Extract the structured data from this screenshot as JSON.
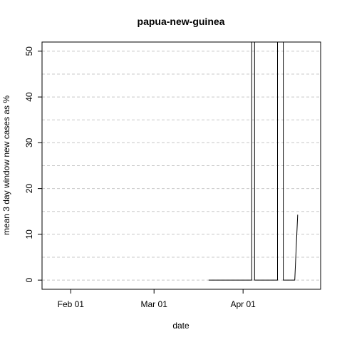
{
  "chart_data": {
    "type": "line",
    "title": "papua-new-guinea",
    "xlabel": "date",
    "ylabel": "mean  3  day window new cases as %",
    "x_axis": {
      "type": "date",
      "range": [
        "2020-01-22",
        "2020-04-28"
      ],
      "ticks": [
        {
          "value": "2020-02-01",
          "label": "Feb 01"
        },
        {
          "value": "2020-03-01",
          "label": "Mar 01"
        },
        {
          "value": "2020-04-01",
          "label": "Apr 01"
        }
      ]
    },
    "y_axis": {
      "range": [
        -2,
        52
      ],
      "ticks": [
        0,
        10,
        20,
        30,
        40,
        50
      ],
      "minor_grid": [
        5,
        15,
        25,
        35,
        45
      ]
    },
    "grid": true,
    "series": [
      {
        "x": [
          "2020-03-20",
          "2020-03-25",
          "2020-03-30",
          "2020-04-04",
          "2020-04-04",
          "2020-04-05",
          "2020-04-05",
          "2020-04-13",
          "2020-04-13",
          "2020-04-15",
          "2020-04-15",
          "2020-04-19",
          "2020-04-20"
        ],
        "y": [
          0,
          0,
          0,
          0,
          52,
          52,
          0,
          0,
          52,
          52,
          0,
          0,
          14.3
        ]
      }
    ]
  }
}
